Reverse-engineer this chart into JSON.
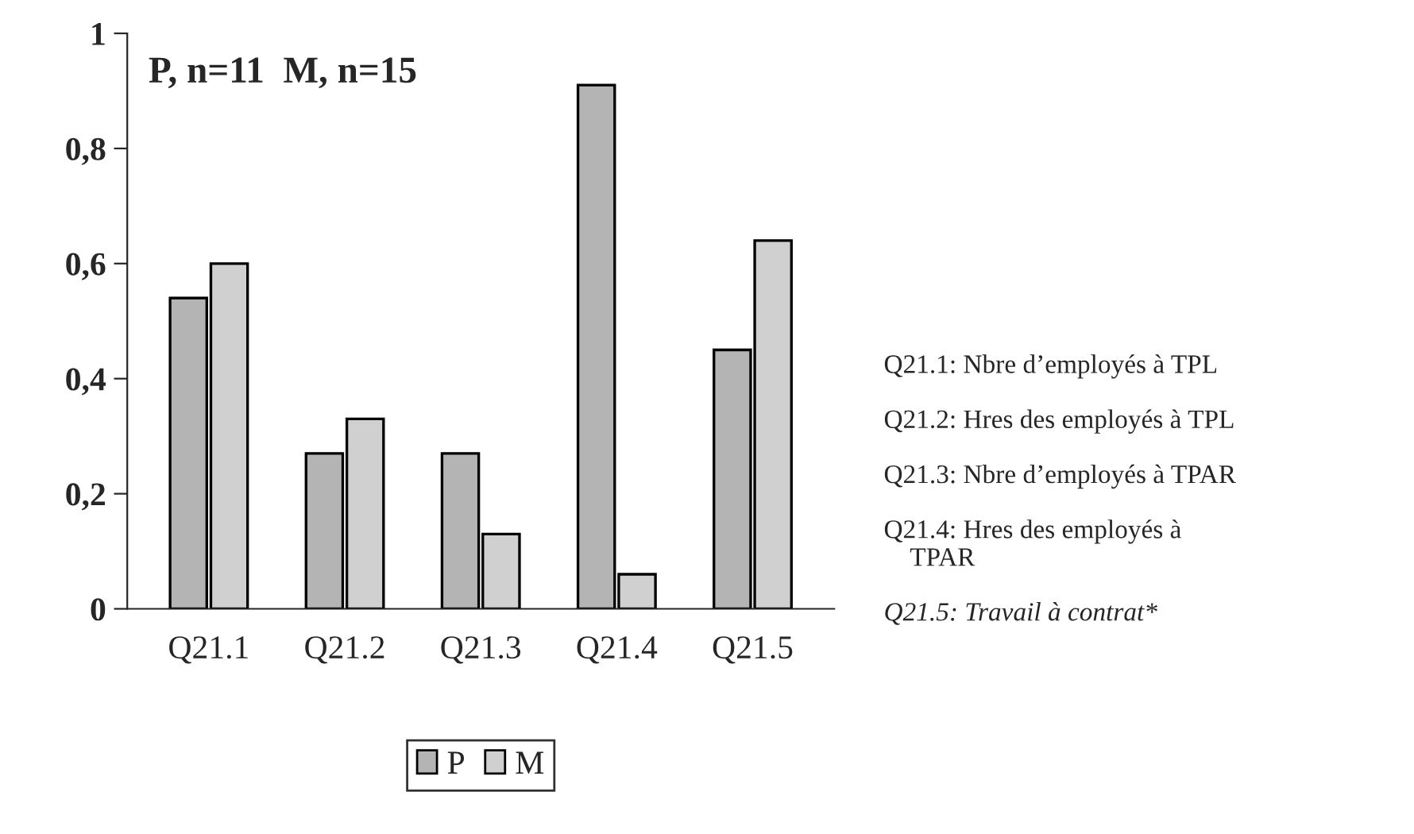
{
  "chart_data": {
    "type": "bar",
    "categories": [
      "Q21.1",
      "Q21.2",
      "Q21.3",
      "Q21.4",
      "Q21.5"
    ],
    "series": [
      {
        "name": "P",
        "color": "#b4b4b4",
        "values": [
          0.54,
          0.27,
          0.27,
          0.91,
          0.45
        ]
      },
      {
        "name": "M",
        "color": "#d0d0d0",
        "values": [
          0.6,
          0.33,
          0.13,
          0.06,
          0.64
        ]
      }
    ],
    "ylim": [
      0,
      1
    ],
    "yticks": [
      0,
      {
        "value": 0.2,
        "label": "0,2"
      },
      {
        "value": 0.4,
        "label": "0,4"
      },
      {
        "value": 0.6,
        "label": "0,6"
      },
      {
        "value": 0.8,
        "label": "0,8"
      },
      1
    ],
    "annotations": [
      "P, n=11  M, n=15",
      "Q21.1: Nbre d’employés à TPL",
      "Q21.2: Hres des employés à TPL",
      "Q21.3: Nbre d’employés à TPAR",
      "Q21.4: Hres des employés à\n    TPAR",
      "Q21.5: Travail à contrat*"
    ],
    "legend": "bottom",
    "grid": false
  }
}
